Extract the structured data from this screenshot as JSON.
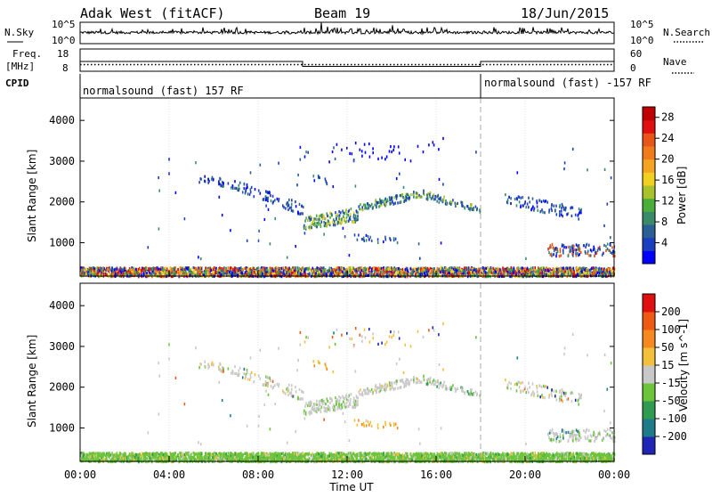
{
  "header": {
    "station": "Adak West (fitACF)",
    "beam": "Beam 19",
    "date": "18/Jun/2015"
  },
  "noise_panel": {
    "left_label": "N.Sky",
    "right_label": "N.Search",
    "ticks_left": [
      "10^5",
      "10^0"
    ],
    "ticks_right": [
      "10^5",
      "10^0"
    ]
  },
  "freq_panel": {
    "left_label_line1": "Freq.",
    "left_label_line2": "[MHz]",
    "right_label": "Nave",
    "ticks_left": [
      "18",
      "8"
    ],
    "ticks_right": [
      "60",
      "0"
    ],
    "freq_segments": [
      {
        "from_hour": 0,
        "to_hour": 10,
        "mhz": 12.4
      },
      {
        "from_hour": 10,
        "to_hour": 18,
        "mhz": 10.2
      },
      {
        "from_hour": 18,
        "to_hour": 24,
        "mhz": 12.4
      }
    ],
    "freq_axis": [
      8,
      18
    ],
    "nave_axis": [
      0,
      60
    ],
    "nave_value": 18
  },
  "cpid_panel": {
    "label": "CPID",
    "program_1": "normalsound (fast) 157 RF",
    "program_2": "normalsound (fast) -157 RF",
    "switch_hour": 18
  },
  "chart_data": [
    {
      "type": "heatmap",
      "name": "power",
      "ylabel": "Slant Range [km]",
      "y_ticks": [
        "1000",
        "2000",
        "3000",
        "4000"
      ],
      "y_range": [
        180,
        4550
      ],
      "x_ticks": [
        "00:00",
        "04:00",
        "08:00",
        "12:00",
        "16:00",
        "20:00",
        "00:00"
      ],
      "x_range_hours": [
        0,
        24
      ],
      "colorbar": {
        "label": "Power [dB]",
        "ticks": [
          "4",
          "8",
          "12",
          "16",
          "20",
          "24",
          "28"
        ],
        "range": [
          0,
          30
        ],
        "colors": [
          "#0000ff",
          "#1b3fbf",
          "#2b5f95",
          "#3a8a6a",
          "#4cae3a",
          "#a9c12a",
          "#f0d020",
          "#f5a323",
          "#f07b1a",
          "#e8551a",
          "#e01010",
          "#c00000"
        ]
      }
    },
    {
      "type": "heatmap",
      "name": "velocity",
      "ylabel": "Slant Range [km]",
      "y_ticks": [
        "1000",
        "2000",
        "3000",
        "4000"
      ],
      "y_range": [
        180,
        4550
      ],
      "x_ticks": [
        "00:00",
        "04:00",
        "08:00",
        "12:00",
        "16:00",
        "20:00",
        "00:00"
      ],
      "x_range_hours": [
        0,
        24
      ],
      "colorbar": {
        "label": "Velocity [m s^-1]",
        "ticks": [
          "200",
          "100",
          "50",
          "15",
          "-15",
          "-50",
          "-100",
          "-200"
        ],
        "colors": [
          "#1f25b5",
          "#1f7a8a",
          "#2e9a52",
          "#6cc43a",
          "#c8c8c8",
          "#f2c03a",
          "#f5891f",
          "#ee5a14",
          "#e01010"
        ]
      }
    }
  ],
  "xaxis_label": "Time UT",
  "colors": {
    "gridline": "#b4b4b4",
    "power_main_band": "#3a6fa8",
    "power_strong": "#a9c12a"
  }
}
